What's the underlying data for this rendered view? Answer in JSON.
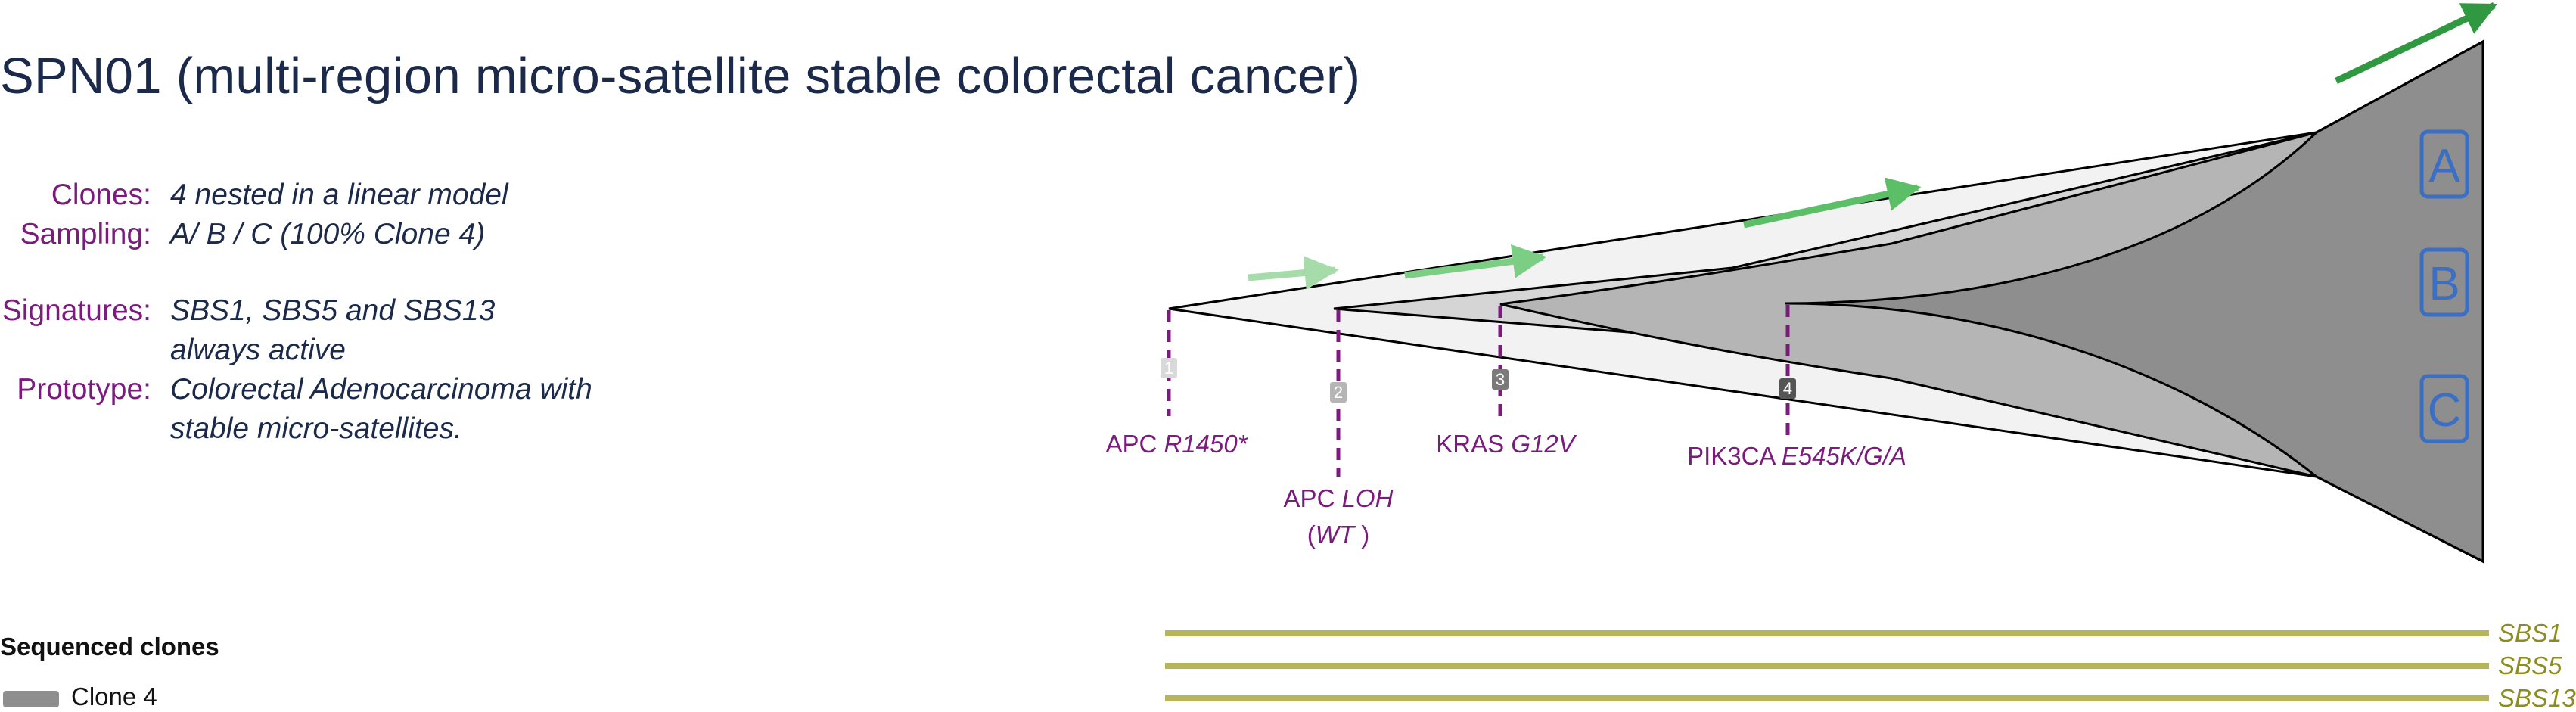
{
  "title": "SPN01 (multi-region micro-satellite stable colorectal cancer)",
  "info": {
    "clones_label": "Clones:",
    "clones_value": "4 nested in a linear model",
    "sampling_label": "Sampling:",
    "sampling_value": "A/ B / C (100% Clone 4)",
    "signatures_label": "Signatures:",
    "signatures_value_line1": "SBS1, SBS5 and SBS13",
    "signatures_value_line2": "always active",
    "prototype_label": "Prototype:",
    "prototype_value_line1": "Colorectal Adenocarcinoma with",
    "prototype_value_line2": "stable micro-satellites."
  },
  "clones": [
    {
      "number": "1",
      "gene": "APC",
      "variant": "R1450*"
    },
    {
      "number": "2",
      "gene": "APC",
      "variant": "LOH",
      "variant_extra": "WT"
    },
    {
      "number": "3",
      "gene": "KRAS",
      "variant": "G12V"
    },
    {
      "number": "4",
      "gene": "PIK3CA",
      "variant": "E545K/G/A"
    }
  ],
  "regions": [
    "A",
    "B",
    "C"
  ],
  "signatures": [
    "SBS1",
    "SBS5",
    "SBS13"
  ],
  "legend": {
    "title": "Sequenced clones",
    "items": [
      "Clone 4"
    ]
  },
  "colors": {
    "title": "#1b2a4a",
    "label": "#7b1b7e",
    "signature": "#8d8c1f",
    "region_box": "#3a6fc4",
    "clone4_fill": "#8e8e8e",
    "arrow_dark": "#2f9840",
    "arrow_light": "#a6dcaa"
  }
}
